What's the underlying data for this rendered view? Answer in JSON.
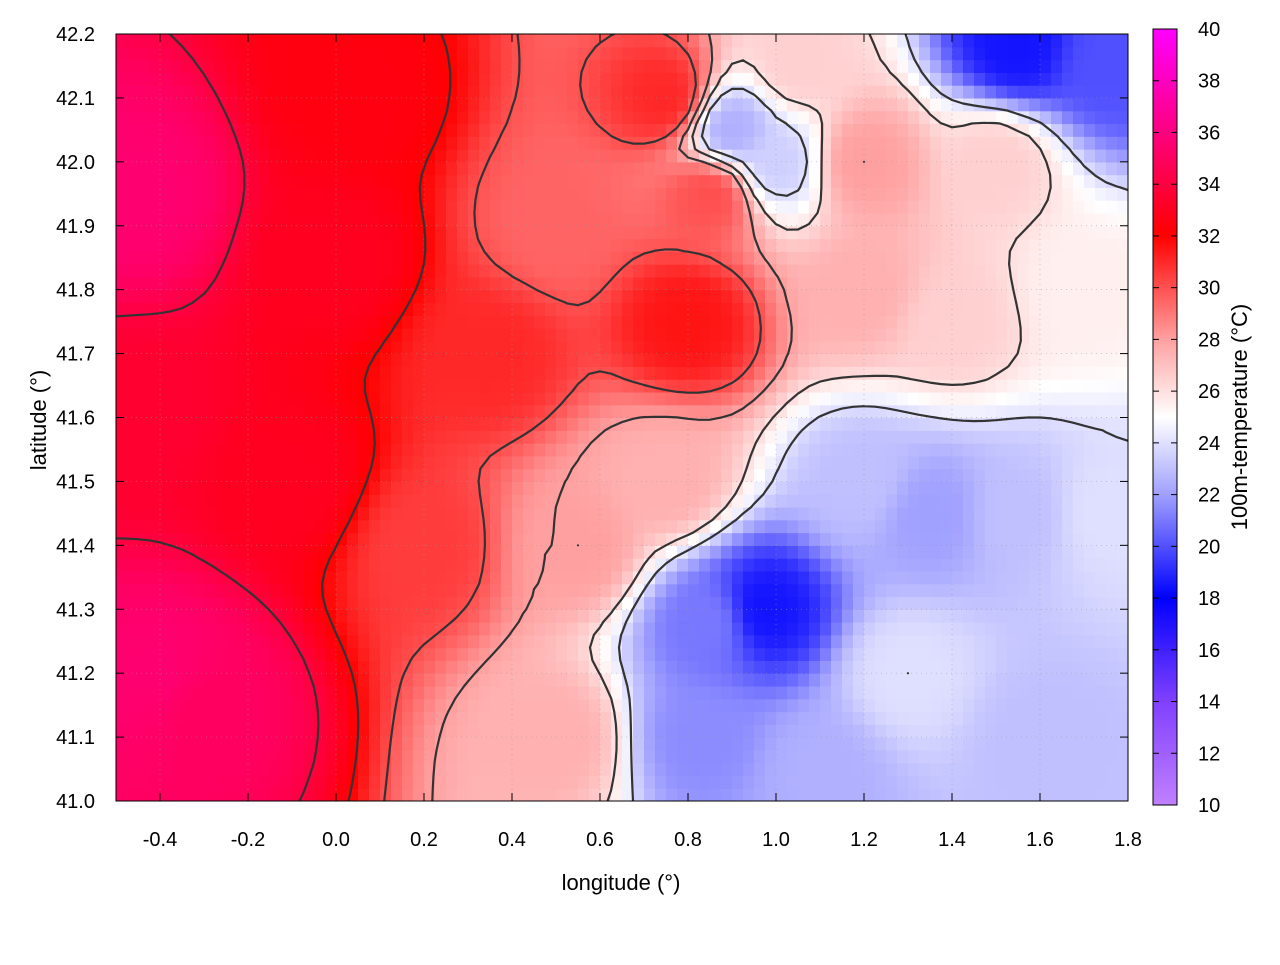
{
  "chart_data": {
    "type": "heatmap",
    "title": "",
    "xlabel": "longitude (°)",
    "ylabel": "latitude (°)",
    "colorbar_label": "100m-temperature (°C)",
    "xlim": [
      -0.5,
      1.8
    ],
    "ylim": [
      41.0,
      42.2
    ],
    "x_ticks": [
      -0.4,
      -0.2,
      0.0,
      0.2,
      0.4,
      0.6,
      0.8,
      1.0,
      1.2,
      1.4,
      1.6,
      1.8
    ],
    "x_tick_labels": [
      "-0.4",
      "-0.2",
      "0.0",
      "0.2",
      "0.4",
      "0.6",
      "0.8",
      "1.0",
      "1.2",
      "1.4",
      "1.6",
      "1.8"
    ],
    "y_ticks": [
      41.0,
      41.1,
      41.2,
      41.3,
      41.4,
      41.5,
      41.6,
      41.7,
      41.8,
      41.9,
      42.0,
      42.1,
      42.2
    ],
    "y_tick_labels": [
      "41.0",
      "41.1",
      "41.2",
      "41.3",
      "41.4",
      "41.5",
      "41.6",
      "41.7",
      "41.8",
      "41.9",
      "42.0",
      "42.1",
      "42.2"
    ],
    "colorbar_range": [
      10,
      40
    ],
    "colorbar_ticks": [
      10,
      12,
      14,
      16,
      18,
      20,
      22,
      24,
      26,
      28,
      30,
      32,
      34,
      36,
      38,
      40
    ],
    "colorbar_tick_labels": [
      "10",
      "12",
      "14",
      "16",
      "18",
      "20",
      "22",
      "24",
      "26",
      "28",
      "30",
      "32",
      "34",
      "36",
      "38",
      "40"
    ],
    "colormap": [
      {
        "value": 10,
        "color": "#c080ff"
      },
      {
        "value": 14,
        "color": "#8040ff"
      },
      {
        "value": 18,
        "color": "#0000ff"
      },
      {
        "value": 22,
        "color": "#a0a0ff"
      },
      {
        "value": 25,
        "color": "#ffffff"
      },
      {
        "value": 28,
        "color": "#ffa0a0"
      },
      {
        "value": 32,
        "color": "#ff0000"
      },
      {
        "value": 36,
        "color": "#ff0080"
      },
      {
        "value": 40,
        "color": "#ff00ff"
      }
    ],
    "grid": true,
    "contours": true,
    "field_samples": [
      {
        "lon": -0.45,
        "lat": 41.95,
        "temp": 35.5
      },
      {
        "lon": -0.45,
        "lat": 41.6,
        "temp": 33.5
      },
      {
        "lon": -0.4,
        "lat": 41.2,
        "temp": 35.5
      },
      {
        "lon": -0.3,
        "lat": 41.15,
        "temp": 35.0
      },
      {
        "lon": -0.1,
        "lat": 41.5,
        "temp": 33.0
      },
      {
        "lon": 0.0,
        "lat": 41.85,
        "temp": 33.0
      },
      {
        "lon": 0.05,
        "lat": 42.1,
        "temp": 32.5
      },
      {
        "lon": 0.2,
        "lat": 41.4,
        "temp": 30.5
      },
      {
        "lon": 0.35,
        "lat": 41.7,
        "temp": 31.0
      },
      {
        "lon": 0.5,
        "lat": 41.9,
        "temp": 29.5
      },
      {
        "lon": 0.55,
        "lat": 41.4,
        "temp": 28.0
      },
      {
        "lon": 0.5,
        "lat": 41.1,
        "temp": 27.5
      },
      {
        "lon": 0.8,
        "lat": 41.75,
        "temp": 31.5
      },
      {
        "lon": 0.85,
        "lat": 41.95,
        "temp": 30.0
      },
      {
        "lon": 0.75,
        "lat": 42.1,
        "temp": 31.0
      },
      {
        "lon": 0.75,
        "lat": 41.5,
        "temp": 27.5
      },
      {
        "lon": 0.85,
        "lat": 41.28,
        "temp": 21.0
      },
      {
        "lon": 0.97,
        "lat": 41.3,
        "temp": 18.5
      },
      {
        "lon": 0.83,
        "lat": 41.1,
        "temp": 21.5
      },
      {
        "lon": 1.1,
        "lat": 41.05,
        "temp": 22.5
      },
      {
        "lon": 1.3,
        "lat": 41.2,
        "temp": 24.0
      },
      {
        "lon": 1.6,
        "lat": 41.1,
        "temp": 23.0
      },
      {
        "lon": 1.2,
        "lat": 41.5,
        "temp": 23.0
      },
      {
        "lon": 1.35,
        "lat": 41.45,
        "temp": 22.0
      },
      {
        "lon": 1.55,
        "lat": 41.45,
        "temp": 23.0
      },
      {
        "lon": 1.75,
        "lat": 41.45,
        "temp": 24.0
      },
      {
        "lon": 1.2,
        "lat": 41.8,
        "temp": 27.5
      },
      {
        "lon": 1.4,
        "lat": 41.75,
        "temp": 26.5
      },
      {
        "lon": 1.7,
        "lat": 41.8,
        "temp": 25.5
      },
      {
        "lon": 1.2,
        "lat": 42.0,
        "temp": 28.0
      },
      {
        "lon": 1.5,
        "lat": 42.0,
        "temp": 26.5
      },
      {
        "lon": 1.55,
        "lat": 42.18,
        "temp": 18.5
      },
      {
        "lon": 1.75,
        "lat": 42.15,
        "temp": 20.0
      },
      {
        "lon": 0.9,
        "lat": 42.05,
        "temp": 22.5
      },
      {
        "lon": 1.0,
        "lat": 42.0,
        "temp": 23.5
      },
      {
        "lon": 1.05,
        "lat": 42.15,
        "temp": 26.5
      }
    ]
  }
}
